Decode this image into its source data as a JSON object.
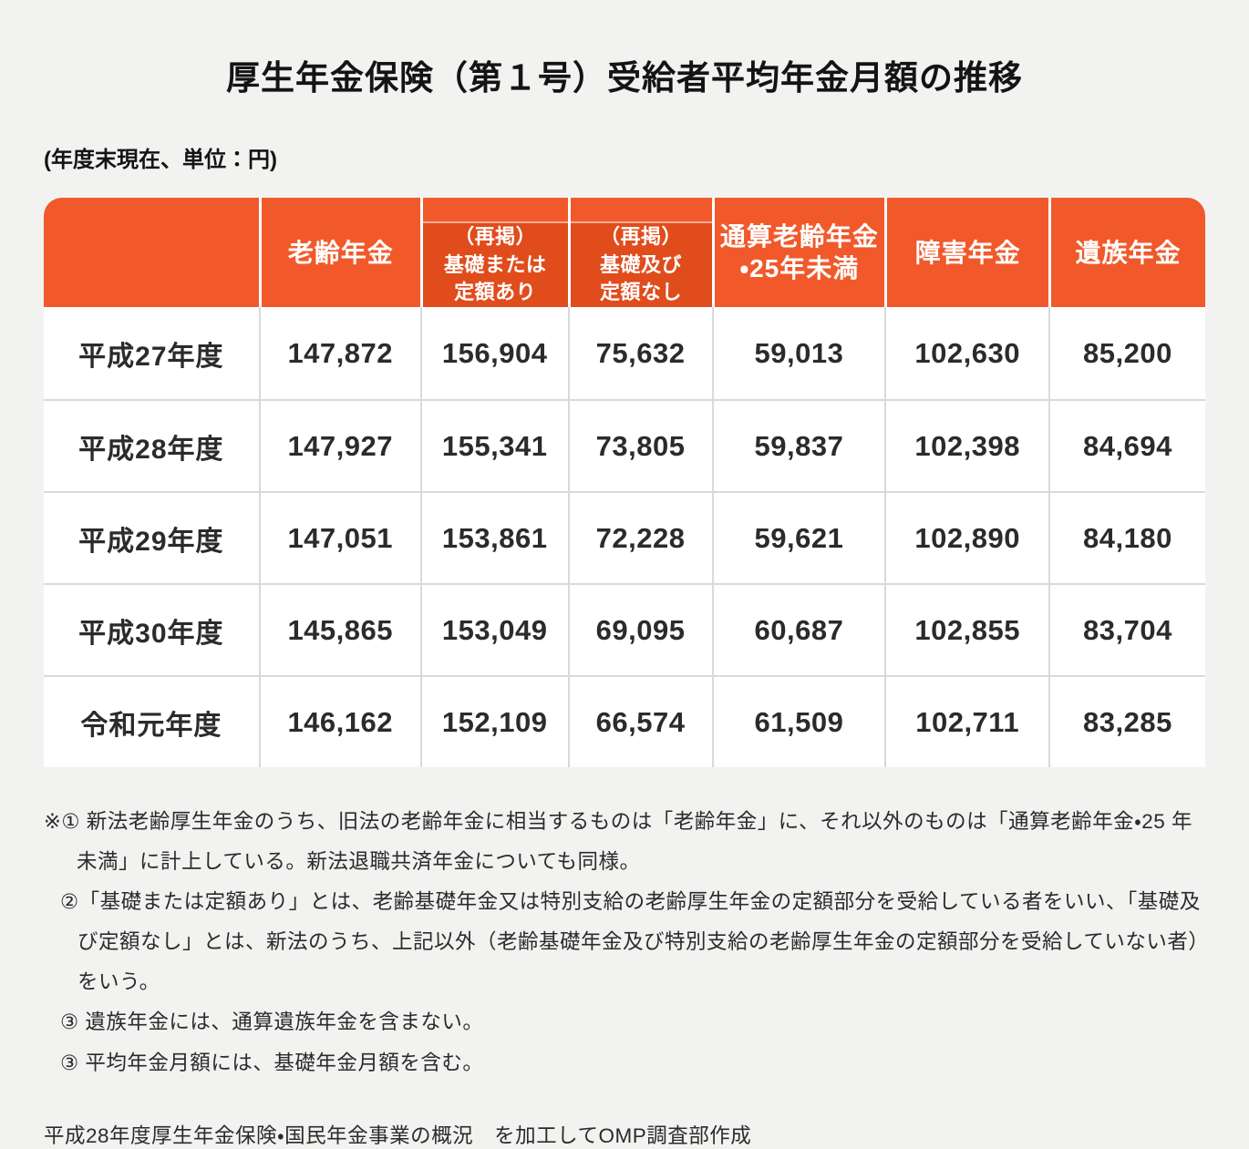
{
  "page": {
    "title": "厚生年金保険（第１号）受給者平均年金月額の推移",
    "subtitle": "(年度末現在、単位：円)"
  },
  "colors": {
    "header_orange": "#F1592B",
    "header_dark_orange": "#E04C1C",
    "background": "#F2F2F1",
    "text": "#2B2B2B",
    "gridline": "#D9D9D9",
    "header_text": "#FFFFFF"
  },
  "table": {
    "header": {
      "col_year": "",
      "col_rorei": "老齢年金",
      "col_kiso_ari": {
        "line1": "（再掲）",
        "line2": "基礎または",
        "line3": "定額あり"
      },
      "col_kiso_nashi": {
        "line1": "（再掲）",
        "line2": "基礎及び",
        "line3": "定額なし"
      },
      "col_tsusan": {
        "line1": "通算老齢年金",
        "line2": "・25年未満"
      },
      "col_shogai": "障害年金",
      "col_izoku": "遺族年金"
    },
    "rows": [
      {
        "year": "平成27年度",
        "values": [
          "147,872",
          "156,904",
          "75,632",
          "59,013",
          "102,630",
          "85,200"
        ]
      },
      {
        "year": "平成28年度",
        "values": [
          "147,927",
          "155,341",
          "73,805",
          "59,837",
          "102,398",
          "84,694"
        ]
      },
      {
        "year": "平成29年度",
        "values": [
          "147,051",
          "153,861",
          "72,228",
          "59,621",
          "102,890",
          "84,180"
        ]
      },
      {
        "year": "平成30年度",
        "values": [
          "145,865",
          "153,049",
          "69,095",
          "60,687",
          "102,855",
          "83,704"
        ]
      },
      {
        "year": "令和元年度",
        "values": [
          "146,162",
          "152,109",
          "66,574",
          "61,509",
          "102,711",
          "83,285"
        ]
      }
    ]
  },
  "notes": {
    "note1": "※① 新法老齢厚生年金のうち、旧法の老齢年金に相当するものは「老齢年金」に、それ以外のものは「通算老齢年金・25 年未満」に計上している。新法退職共済年金についても同様。",
    "note2": "②「基礎または定額あり」とは、老齢基礎年金又は特別支給の老齢厚生年金の定額部分を受給している者をいい、「基礎及び定額なし」とは、新法のうち、上記以外（老齢基礎年金及び特別支給の老齢厚生年金の定額部分を受給していない者）をいう。",
    "note3": "③ 遺族年金には、通算遺族年金を含まない。",
    "note4": "③ 平均年金月額には、基礎年金月額を含む。",
    "source": "平成28年度厚生年金保険・国民年金事業の概況　を加工してOMP調査部作成"
  },
  "chart_data": {
    "type": "table",
    "title": "厚生年金保険（第１号）受給者平均年金月額の推移",
    "unit": "円",
    "as_of": "年度末現在",
    "categories": [
      "平成27年度",
      "平成28年度",
      "平成29年度",
      "平成30年度",
      "令和元年度"
    ],
    "series": [
      {
        "name": "老齢年金",
        "values": [
          147872,
          147927,
          147051,
          145865,
          146162
        ]
      },
      {
        "name": "（再掲）基礎または定額あり",
        "values": [
          156904,
          155341,
          153861,
          153049,
          152109
        ]
      },
      {
        "name": "（再掲）基礎及び定額なし",
        "values": [
          75632,
          73805,
          72228,
          69095,
          66574
        ]
      },
      {
        "name": "通算老齢年金・25年未満",
        "values": [
          59013,
          59837,
          59621,
          60687,
          61509
        ]
      },
      {
        "name": "障害年金",
        "values": [
          102630,
          102398,
          102890,
          102855,
          102711
        ]
      },
      {
        "name": "遺族年金",
        "values": [
          85200,
          84694,
          84180,
          83704,
          83285
        ]
      }
    ]
  }
}
